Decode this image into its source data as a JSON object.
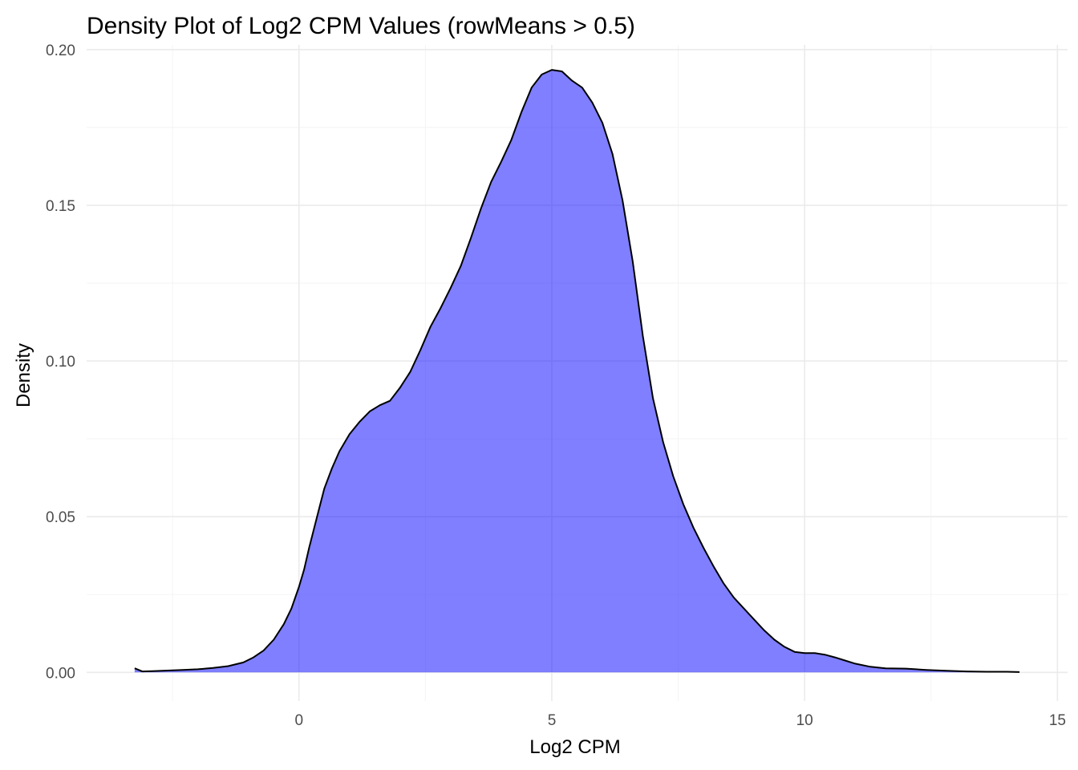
{
  "chart_data": {
    "type": "area",
    "title": "Density Plot of Log2 CPM Values (rowMeans > 0.5)",
    "xlabel": "Log2 CPM",
    "ylabel": "Density",
    "xlim": [
      -4.2,
      15.2
    ],
    "ylim": [
      -0.0092,
      0.2015
    ],
    "x_ticks": [
      0,
      5,
      10,
      15
    ],
    "x_tick_labels": [
      "0",
      "5",
      "10",
      "15"
    ],
    "x_minor_ticks": [
      -2.5,
      2.5,
      7.5,
      12.5
    ],
    "y_ticks": [
      0.0,
      0.05,
      0.1,
      0.15,
      0.2
    ],
    "y_tick_labels": [
      "0.00",
      "0.05",
      "0.10",
      "0.15",
      "0.20"
    ],
    "y_minor_ticks": [
      0.025,
      0.075,
      0.125,
      0.175
    ],
    "grid": true,
    "fill_color": "#0000ff",
    "fill_alpha": 0.5,
    "line_color": "#000000",
    "series": [
      {
        "x": [
          -3.25,
          -3.1,
          -2.9,
          -2.6,
          -2.3,
          -2.0,
          -1.7,
          -1.4,
          -1.1,
          -0.9,
          -0.7,
          -0.5,
          -0.3,
          -0.15,
          0.0,
          0.1,
          0.2,
          0.35,
          0.5,
          0.65,
          0.8,
          1.0,
          1.2,
          1.4,
          1.6,
          1.8,
          2.0,
          2.2,
          2.4,
          2.6,
          2.8,
          3.0,
          3.2,
          3.4,
          3.6,
          3.8,
          4.0,
          4.2,
          4.4,
          4.6,
          4.8,
          5.0,
          5.2,
          5.4,
          5.6,
          5.8,
          6.0,
          6.2,
          6.4,
          6.6,
          6.8,
          7.0,
          7.2,
          7.4,
          7.6,
          7.8,
          8.0,
          8.2,
          8.4,
          8.6,
          8.8,
          9.0,
          9.2,
          9.4,
          9.6,
          9.8,
          10.0,
          10.2,
          10.4,
          10.6,
          10.8,
          11.0,
          11.3,
          11.6,
          12.0,
          12.4,
          12.8,
          13.2,
          13.6,
          14.0,
          14.25
        ],
        "y": [
          0.0013,
          0.0003,
          0.0004,
          0.0006,
          0.0008,
          0.001,
          0.0014,
          0.002,
          0.0032,
          0.0048,
          0.007,
          0.0105,
          0.0155,
          0.0205,
          0.0275,
          0.033,
          0.04,
          0.0495,
          0.059,
          0.0655,
          0.071,
          0.0765,
          0.0805,
          0.0838,
          0.0858,
          0.0872,
          0.0915,
          0.0965,
          0.1035,
          0.111,
          0.117,
          0.1235,
          0.1305,
          0.1395,
          0.149,
          0.1575,
          0.164,
          0.171,
          0.18,
          0.1878,
          0.192,
          0.1935,
          0.193,
          0.19,
          0.1878,
          0.183,
          0.1765,
          0.1665,
          0.1515,
          0.132,
          0.108,
          0.088,
          0.074,
          0.063,
          0.054,
          0.0465,
          0.04,
          0.034,
          0.0285,
          0.024,
          0.0205,
          0.017,
          0.0135,
          0.0105,
          0.0082,
          0.0066,
          0.0062,
          0.0062,
          0.0057,
          0.0048,
          0.0038,
          0.0028,
          0.0018,
          0.0013,
          0.0012,
          0.0008,
          0.0005,
          0.0003,
          0.0002,
          0.0002,
          0.0001
        ]
      }
    ]
  }
}
